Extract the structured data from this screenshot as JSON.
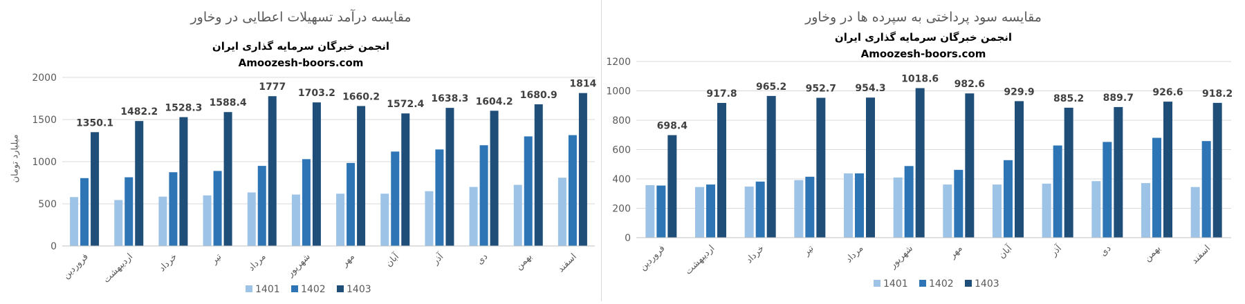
{
  "colors": {
    "s1401": "#9DC3E6",
    "s1402": "#2E75B6",
    "s1403": "#1F4E79",
    "grid": "#d9d9d9",
    "text": "#595959"
  },
  "left": {
    "title": "مقایسه درآمد تسهیلات اعطایی در وخاور",
    "watermark_fa": "انجمن خبرگان سرمایه گذاری ایران",
    "watermark_en": "Amoozesh-boors.com",
    "ylabel": "میلیارد تومان"
  },
  "right": {
    "title": "مقایسه سود پرداختی به سپرده ها در وخاور",
    "watermark_fa": "انجمن خبرگان سرمایه گذاری ایران",
    "watermark_en": "Amoozesh-boors.com"
  },
  "chart_data": [
    {
      "type": "bar",
      "title": "مقایسه درآمد تسهیلات اعطایی در وخاور",
      "ylabel": "میلیارد تومان",
      "categories": [
        "فروردین",
        "اردیبهشت",
        "خرداد",
        "تیر",
        "مرداد",
        "شهریور",
        "مهر",
        "آبان",
        "آذر",
        "دی",
        "بهمن",
        "اسفند"
      ],
      "series": [
        {
          "name": "1401",
          "values": [
            580,
            545,
            585,
            600,
            635,
            610,
            620,
            620,
            650,
            700,
            725,
            810
          ]
        },
        {
          "name": "1402",
          "values": [
            805,
            815,
            875,
            890,
            950,
            1030,
            985,
            1120,
            1145,
            1195,
            1300,
            1315
          ]
        },
        {
          "name": "1403",
          "values": [
            1350.1,
            1482.2,
            1528.3,
            1588.4,
            1777,
            1703.2,
            1660.2,
            1572.4,
            1638.3,
            1604.2,
            1680.9,
            1814
          ]
        }
      ],
      "data_labels": [
        "1350.1",
        "1482.2",
        "1528.3",
        "1588.4",
        "1777",
        "1703.2",
        "1660.2",
        "1572.4",
        "1638.3",
        "1604.2",
        "1680.9",
        "1814"
      ],
      "yticks": [
        0,
        500,
        1000,
        1500,
        2000
      ],
      "ylim": [
        0,
        2000
      ],
      "grid": true,
      "legend": "bottom"
    },
    {
      "type": "bar",
      "title": "مقایسه سود پرداختی به سپرده ها در وخاور",
      "categories": [
        "فروردین",
        "اردیبهشت",
        "خرداد",
        "تیر",
        "مرداد",
        "شهریور",
        "مهر",
        "آبان",
        "آذر",
        "دی",
        "بهمن",
        "اسفند"
      ],
      "series": [
        {
          "name": "1401",
          "values": [
            358,
            345,
            348,
            392,
            438,
            410,
            362,
            362,
            368,
            385,
            372,
            345
          ]
        },
        {
          "name": "1402",
          "values": [
            355,
            362,
            382,
            415,
            438,
            488,
            462,
            528,
            628,
            652,
            680,
            658
          ]
        },
        {
          "name": "1403",
          "values": [
            698.4,
            917.8,
            965.2,
            952.7,
            954.3,
            1018.6,
            982.6,
            929.9,
            885.2,
            889.7,
            926.6,
            918.2
          ]
        }
      ],
      "data_labels": [
        "698.4",
        "917.8",
        "965.2",
        "952.7",
        "954.3",
        "1018.6",
        "982.6",
        "929.9",
        "885.2",
        "889.7",
        "926.6",
        "918.2"
      ],
      "yticks": [
        0,
        200,
        400,
        600,
        800,
        1000,
        1200
      ],
      "ylim": [
        0,
        1200
      ],
      "grid": true,
      "legend": "bottom"
    }
  ]
}
